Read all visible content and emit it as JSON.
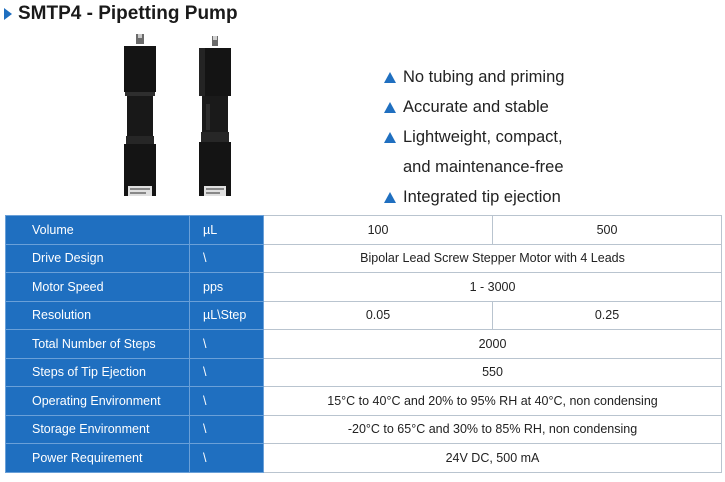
{
  "title": "SMTP4 - Pipetting Pump",
  "colors": {
    "accent": "#1f6fc0",
    "product_body": "#141414"
  },
  "features": [
    "No tubing and priming",
    "Accurate and stable",
    "Lightweight, compact,",
    "and maintenance-free",
    "Integrated tip ejection"
  ],
  "specs": {
    "volume": {
      "label": "Volume",
      "unit": "µL",
      "values": [
        "100",
        "500"
      ]
    },
    "drive": {
      "label": "Drive Design",
      "unit": "\\",
      "value": "Bipolar Lead Screw Stepper Motor with 4 Leads"
    },
    "speed": {
      "label": "Motor Speed",
      "unit": "pps",
      "value": "1 -  3000"
    },
    "resolution": {
      "label": "Resolution",
      "unit": "µL\\Step",
      "values": [
        "0.05",
        "0.25"
      ]
    },
    "steps": {
      "label": "Total Number of Steps",
      "unit": "\\",
      "value": "2000"
    },
    "ejection": {
      "label": "Steps of Tip Ejection",
      "unit": "\\",
      "value": "550"
    },
    "operating": {
      "label": "Operating Environment",
      "unit": "\\",
      "value": "15°C to 40°C and 20% to 95% RH at 40°C, non condensing"
    },
    "storage": {
      "label": "Storage Environment",
      "unit": "\\",
      "value": "-20°C to 65°C and 30% to 85% RH, non condensing"
    },
    "power": {
      "label": "Power Requirement",
      "unit": "\\",
      "value": "24V DC, 500 mA"
    }
  }
}
